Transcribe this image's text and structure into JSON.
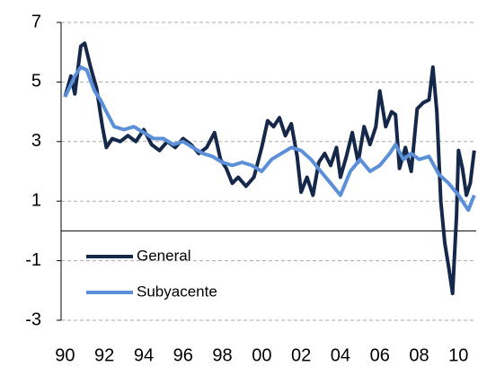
{
  "chart_data": {
    "type": "line",
    "xlim": [
      1989.8,
      2010.9
    ],
    "xticks": [
      {
        "value": 1990,
        "label": "90"
      },
      {
        "value": 1992,
        "label": "92"
      },
      {
        "value": 1994,
        "label": "94"
      },
      {
        "value": 1996,
        "label": "96"
      },
      {
        "value": 1998,
        "label": "98"
      },
      {
        "value": 2000,
        "label": "00"
      },
      {
        "value": 2002,
        "label": "02"
      },
      {
        "value": 2004,
        "label": "04"
      },
      {
        "value": 2006,
        "label": "06"
      },
      {
        "value": 2008,
        "label": "08"
      },
      {
        "value": 2010,
        "label": "10"
      }
    ],
    "ylim": [
      -3,
      7
    ],
    "yticks": [
      7,
      5,
      3,
      1,
      -1,
      -3
    ],
    "grid": true,
    "legend": "lower left",
    "series": [
      {
        "name": "General",
        "color": "#16284a",
        "x": [
          1990.0,
          1990.3,
          1990.5,
          1990.8,
          1991.0,
          1991.3,
          1991.6,
          1991.9,
          1992.1,
          1992.4,
          1992.8,
          1993.2,
          1993.6,
          1994.0,
          1994.4,
          1994.8,
          1995.2,
          1995.6,
          1996.0,
          1996.4,
          1996.8,
          1997.2,
          1997.6,
          1997.9,
          1998.2,
          1998.5,
          1998.8,
          1999.2,
          1999.6,
          2000.0,
          2000.3,
          2000.6,
          2000.9,
          2001.2,
          2001.5,
          2001.8,
          2002.0,
          2002.3,
          2002.6,
          2002.9,
          2003.2,
          2003.5,
          2003.8,
          2004.0,
          2004.3,
          2004.6,
          2004.9,
          2005.2,
          2005.5,
          2005.8,
          2006.0,
          2006.3,
          2006.6,
          2006.8,
          2007.0,
          2007.3,
          2007.6,
          2007.9,
          2008.2,
          2008.5,
          2008.7,
          2008.9,
          2009.1,
          2009.3,
          2009.5,
          2009.7,
          2009.9,
          2010.0,
          2010.2,
          2010.4,
          2010.6,
          2010.8
        ],
        "values": [
          4.5,
          5.2,
          4.6,
          6.2,
          6.3,
          5.5,
          4.8,
          3.5,
          2.8,
          3.1,
          3.0,
          3.2,
          3.0,
          3.4,
          2.9,
          2.7,
          3.0,
          2.8,
          3.1,
          2.9,
          2.6,
          2.8,
          3.3,
          2.4,
          2.1,
          1.6,
          1.8,
          1.5,
          1.8,
          2.8,
          3.7,
          3.5,
          3.8,
          3.2,
          3.6,
          2.5,
          1.3,
          1.8,
          1.2,
          2.3,
          2.6,
          2.2,
          2.8,
          1.8,
          2.5,
          3.3,
          2.3,
          3.5,
          2.9,
          3.5,
          4.7,
          3.5,
          4.0,
          3.9,
          2.1,
          2.8,
          2.0,
          4.1,
          4.3,
          4.4,
          5.5,
          4.0,
          1.0,
          -0.4,
          -1.2,
          -2.1,
          0.5,
          2.7,
          2.1,
          1.2,
          1.6,
          2.7
        ]
      },
      {
        "name": "Subyacente",
        "color": "#5b8fd8",
        "x": [
          1990.0,
          1990.5,
          1990.8,
          1991.1,
          1991.5,
          1991.8,
          1992.1,
          1992.5,
          1993.0,
          1993.5,
          1994.0,
          1994.5,
          1995.0,
          1995.5,
          1996.0,
          1996.5,
          1997.0,
          1997.5,
          1998.0,
          1998.5,
          1999.0,
          1999.5,
          2000.0,
          2000.5,
          2001.0,
          2001.5,
          2002.0,
          2002.5,
          2003.0,
          2003.5,
          2004.0,
          2004.5,
          2005.0,
          2005.5,
          2006.0,
          2006.5,
          2006.8,
          2007.2,
          2007.6,
          2008.0,
          2008.5,
          2009.0,
          2009.5,
          2010.0,
          2010.5,
          2010.8
        ],
        "values": [
          4.5,
          5.2,
          5.5,
          5.4,
          4.7,
          4.4,
          4.0,
          3.5,
          3.4,
          3.5,
          3.3,
          3.1,
          3.1,
          2.9,
          3.0,
          2.8,
          2.6,
          2.5,
          2.3,
          2.2,
          2.3,
          2.2,
          2.0,
          2.4,
          2.6,
          2.8,
          2.7,
          2.4,
          2.0,
          1.6,
          1.2,
          2.0,
          2.4,
          2.0,
          2.2,
          2.6,
          2.9,
          2.4,
          2.6,
          2.4,
          2.5,
          1.9,
          1.6,
          1.2,
          0.7,
          1.2
        ]
      }
    ]
  }
}
